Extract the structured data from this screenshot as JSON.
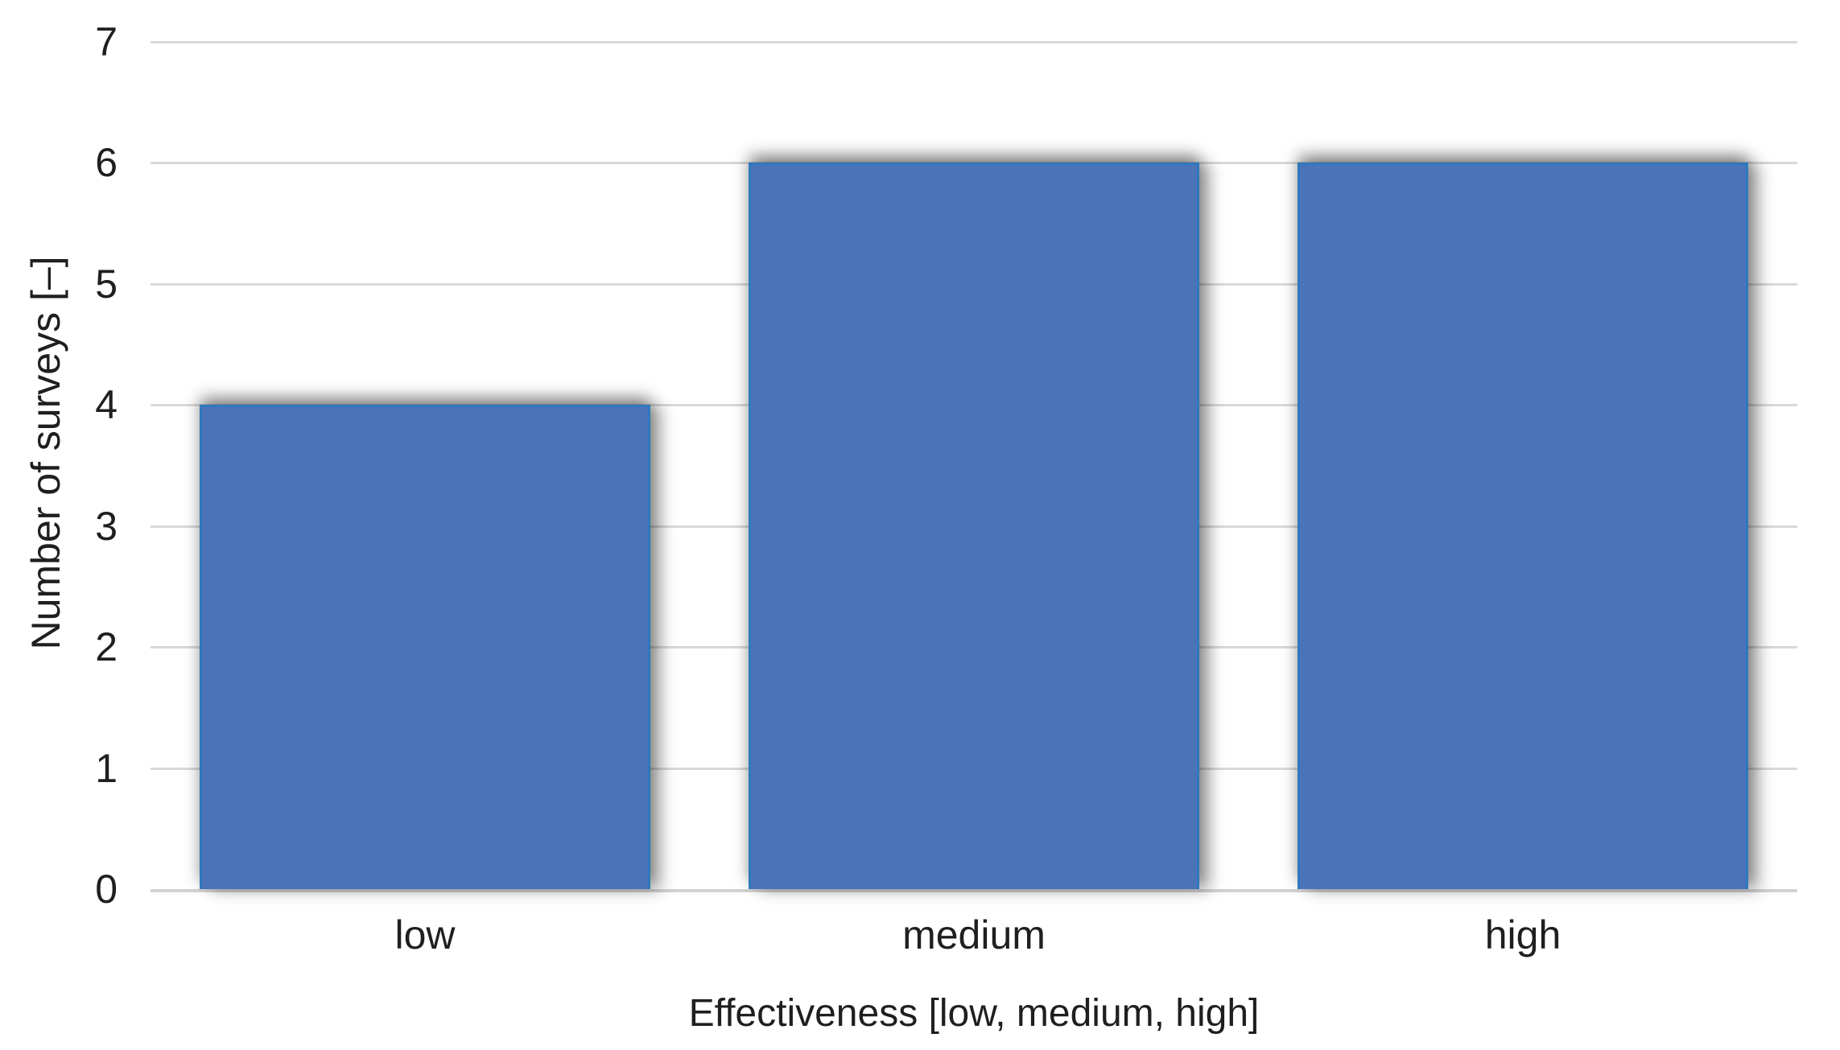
{
  "chart_data": {
    "type": "bar",
    "title": "",
    "categories": [
      "low",
      "medium",
      "high"
    ],
    "values": [
      4,
      6,
      6
    ],
    "xlabel": "Effectiveness [low, medium, high]",
    "ylabel": "Number of surveys [–]",
    "ylim": [
      0,
      7
    ],
    "yticks": [
      0,
      1,
      2,
      3,
      4,
      5,
      6,
      7
    ],
    "grid": "horizontal",
    "legend": "none",
    "bar_width_frac": 0.82,
    "colors": {
      "bar_fill": "#4B73B8",
      "bar_border": "#2E79BE",
      "gridline": "#D9D9D9",
      "axis_line": "#D2D2D2",
      "text": "#1F1F1F",
      "background": "#FFFFFF"
    }
  }
}
